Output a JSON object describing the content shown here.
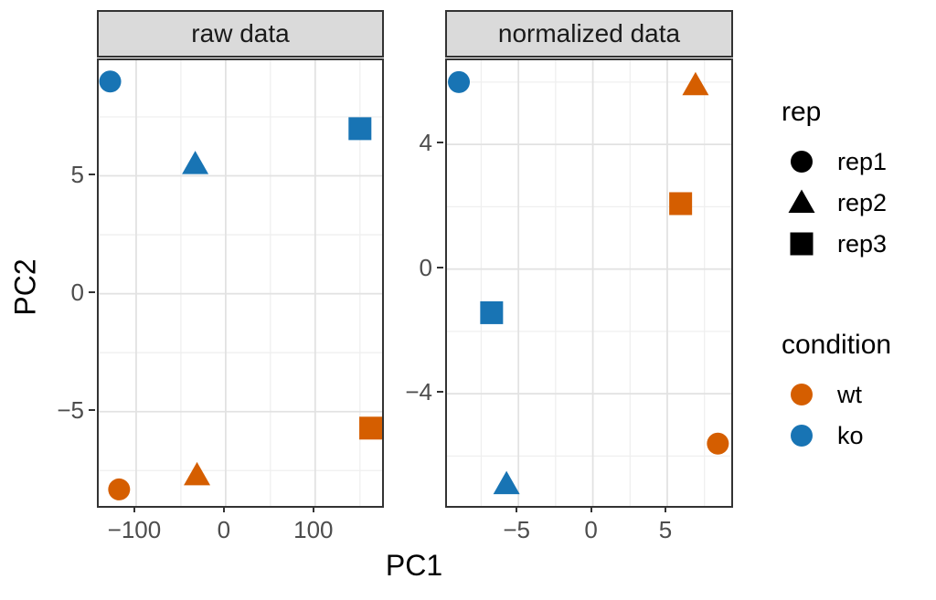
{
  "figure": {
    "x_label": "PC1",
    "y_label": "PC2"
  },
  "palette": {
    "wt": "#D55E00",
    "ko": "#1874B4",
    "legend_symbol": "#000000",
    "strip_bg": "#DADADA",
    "panel_border": "#333333",
    "grid_major": "#E2E2E2",
    "grid_minor": "#EFEFEF",
    "tick_label": "#4D4D4D"
  },
  "shape_map": {
    "rep1": "circle",
    "rep2": "triangle",
    "rep3": "square"
  },
  "chart_data": [
    {
      "type": "scatter",
      "facet": "raw data",
      "xlabel": "PC1",
      "ylabel": "PC2",
      "xlim": [
        -141.8,
        174.7
      ],
      "ylim": [
        -9.0,
        9.9
      ],
      "x_ticks": [
        -100,
        0,
        100
      ],
      "y_ticks": [
        -5,
        0,
        5
      ],
      "x_minor": [
        -50,
        50,
        150
      ],
      "y_minor": [
        -7.5,
        -2.5,
        2.5,
        7.5
      ],
      "grid": true,
      "points": [
        {
          "x": -129,
          "y": 9.0,
          "rep": "rep1",
          "condition": "ko"
        },
        {
          "x": -34,
          "y": 5.5,
          "rep": "rep2",
          "condition": "ko"
        },
        {
          "x": 150,
          "y": 7.0,
          "rep": "rep3",
          "condition": "ko"
        },
        {
          "x": 162,
          "y": -5.7,
          "rep": "rep3",
          "condition": "wt"
        },
        {
          "x": -32,
          "y": -7.7,
          "rep": "rep2",
          "condition": "wt"
        },
        {
          "x": -119,
          "y": -8.3,
          "rep": "rep1",
          "condition": "wt"
        }
      ]
    },
    {
      "type": "scatter",
      "facet": "normalized data",
      "xlabel": "PC1",
      "ylabel": "PC2",
      "xlim": [
        -9.8,
        9.3
      ],
      "ylim": [
        -7.6,
        6.7
      ],
      "x_ticks": [
        -5,
        0,
        5
      ],
      "y_ticks": [
        -4,
        0,
        4
      ],
      "x_minor": [
        -7.5,
        -2.5,
        2.5,
        7.5
      ],
      "y_minor": [
        -6,
        -2,
        2,
        6
      ],
      "grid": true,
      "points": [
        {
          "x": -9.0,
          "y": 6.0,
          "rep": "rep1",
          "condition": "ko"
        },
        {
          "x": 6.9,
          "y": 5.9,
          "rep": "rep2",
          "condition": "wt"
        },
        {
          "x": 5.9,
          "y": 2.1,
          "rep": "rep3",
          "condition": "wt"
        },
        {
          "x": -6.8,
          "y": -1.4,
          "rep": "rep3",
          "condition": "ko"
        },
        {
          "x": 8.4,
          "y": -5.6,
          "rep": "rep1",
          "condition": "wt"
        },
        {
          "x": -5.8,
          "y": -6.9,
          "rep": "rep2",
          "condition": "ko"
        }
      ]
    }
  ],
  "legend": {
    "groups": [
      {
        "id": "rep",
        "title": "rep",
        "items": [
          {
            "label": "rep1",
            "shape": "circle",
            "color": "#000000"
          },
          {
            "label": "rep2",
            "shape": "triangle",
            "color": "#000000"
          },
          {
            "label": "rep3",
            "shape": "square",
            "color": "#000000"
          }
        ]
      },
      {
        "id": "condition",
        "title": "condition",
        "items": [
          {
            "label": "wt",
            "shape": "circle",
            "color": "#D55E00"
          },
          {
            "label": "ko",
            "shape": "circle",
            "color": "#1874B4"
          }
        ]
      }
    ]
  }
}
